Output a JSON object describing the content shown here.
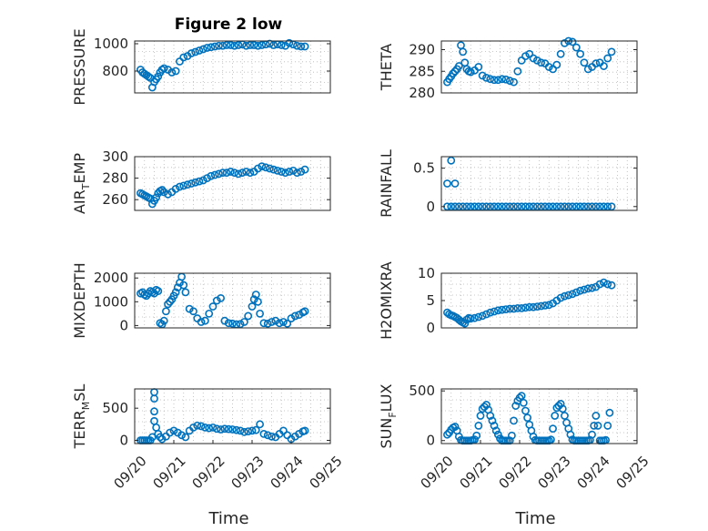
{
  "figure": {
    "title": "Figure 2 low",
    "marker_color": "#0072BD"
  },
  "chart_data": [
    {
      "type": "scatter",
      "panel": "PRESSURE",
      "ylabel": "PRESSURE",
      "ylim": [
        640,
        1020
      ],
      "yticks": [
        800,
        1000
      ],
      "yticklabels": [
        "800",
        "1000"
      ],
      "xlim": [
        0,
        5
      ],
      "xticks": [],
      "xlabel": "",
      "grid": true,
      "x": [
        0.15,
        0.2,
        0.25,
        0.3,
        0.35,
        0.4,
        0.45,
        0.5,
        0.55,
        0.6,
        0.65,
        0.7,
        0.75,
        0.85,
        0.95,
        1.05,
        1.15,
        1.25,
        1.35,
        1.45,
        1.55,
        1.65,
        1.75,
        1.85,
        1.95,
        2.05,
        2.15,
        2.25,
        2.35,
        2.45,
        2.55,
        2.65,
        2.75,
        2.85,
        2.95,
        3.05,
        3.15,
        3.25,
        3.35,
        3.45,
        3.55,
        3.65,
        3.75,
        3.85,
        3.95,
        4.05,
        4.15,
        4.25,
        4.35
      ],
      "y": [
        810,
        790,
        780,
        770,
        760,
        750,
        680,
        720,
        740,
        760,
        790,
        810,
        820,
        810,
        790,
        800,
        870,
        900,
        910,
        930,
        940,
        950,
        960,
        970,
        975,
        980,
        985,
        985,
        990,
        990,
        985,
        990,
        995,
        985,
        990,
        990,
        985,
        990,
        995,
        1000,
        990,
        995,
        990,
        985,
        1005,
        995,
        985,
        980,
        980
      ]
    },
    {
      "type": "scatter",
      "panel": "THETA",
      "ylabel": "THETA",
      "ylim": [
        280,
        292
      ],
      "yticks": [
        280,
        285,
        290
      ],
      "yticklabels": [
        "280",
        "285",
        "290"
      ],
      "xlim": [
        0,
        5
      ],
      "xticks": [],
      "xlabel": "",
      "grid": true,
      "x": [
        0.15,
        0.2,
        0.25,
        0.3,
        0.35,
        0.4,
        0.45,
        0.5,
        0.55,
        0.6,
        0.65,
        0.7,
        0.75,
        0.85,
        0.95,
        1.05,
        1.15,
        1.25,
        1.35,
        1.45,
        1.55,
        1.65,
        1.75,
        1.85,
        1.95,
        2.05,
        2.15,
        2.25,
        2.35,
        2.45,
        2.55,
        2.65,
        2.75,
        2.85,
        2.95,
        3.05,
        3.15,
        3.25,
        3.35,
        3.45,
        3.55,
        3.65,
        3.75,
        3.85,
        3.95,
        4.05,
        4.15,
        4.25,
        4.35
      ],
      "y": [
        282.5,
        283.2,
        283.8,
        284.5,
        285,
        285.5,
        286.2,
        291,
        289.5,
        287,
        285.5,
        285,
        284.8,
        285.2,
        286,
        284,
        283.5,
        283.2,
        283,
        283,
        283.2,
        283.1,
        282.8,
        282.5,
        285,
        287.5,
        288.5,
        289,
        288,
        287.5,
        287,
        286.8,
        286,
        285.5,
        286.5,
        289,
        291.5,
        292,
        291.8,
        290.5,
        289,
        287,
        285.5,
        286,
        286.8,
        287,
        286.2,
        288,
        289.5
      ]
    },
    {
      "type": "scatter",
      "panel": "AIR_TEMP",
      "ylabel": "AIR_TEMP",
      "ylim": [
        250,
        300
      ],
      "yticks": [
        260,
        280,
        300
      ],
      "yticklabels": [
        "260",
        "280",
        "300"
      ],
      "xlim": [
        0,
        5
      ],
      "xticks": [],
      "xlabel": "",
      "grid": true,
      "x": [
        0.15,
        0.2,
        0.25,
        0.3,
        0.35,
        0.4,
        0.45,
        0.5,
        0.55,
        0.6,
        0.65,
        0.7,
        0.75,
        0.85,
        0.95,
        1.05,
        1.15,
        1.25,
        1.35,
        1.45,
        1.55,
        1.65,
        1.75,
        1.85,
        1.95,
        2.05,
        2.15,
        2.25,
        2.35,
        2.45,
        2.55,
        2.65,
        2.75,
        2.85,
        2.95,
        3.05,
        3.15,
        3.25,
        3.35,
        3.45,
        3.55,
        3.65,
        3.75,
        3.85,
        3.95,
        4.05,
        4.15,
        4.25,
        4.35
      ],
      "y": [
        266,
        265,
        264,
        263,
        262,
        261,
        256,
        259,
        262,
        266,
        268,
        269,
        267,
        265,
        267,
        270,
        272,
        273,
        274,
        275,
        276,
        277,
        278,
        280,
        282,
        283,
        284,
        285,
        285,
        286,
        285,
        284,
        285,
        286,
        285,
        286,
        289,
        291,
        290,
        289,
        288,
        287,
        286,
        285,
        286,
        287,
        285,
        286,
        288
      ]
    },
    {
      "type": "scatter",
      "panel": "RAINFALL",
      "ylabel": "RAINFALL",
      "ylim": [
        -0.05,
        0.65
      ],
      "yticks": [
        0,
        0.5
      ],
      "yticklabels": [
        "0",
        "0.5"
      ],
      "xlim": [
        0,
        5
      ],
      "xticks": [],
      "xlabel": "",
      "grid": true,
      "x": [
        0.15,
        0.25,
        0.35,
        0.45,
        0.55,
        0.65,
        0.75,
        0.85,
        0.95,
        1.05,
        1.15,
        1.25,
        1.35,
        1.45,
        1.55,
        1.65,
        1.75,
        1.85,
        1.95,
        2.05,
        2.15,
        2.25,
        2.35,
        2.45,
        2.55,
        2.65,
        2.75,
        2.85,
        2.95,
        3.05,
        3.15,
        3.25,
        3.35,
        3.45,
        3.55,
        3.65,
        3.75,
        3.85,
        3.95,
        4.05,
        4.15,
        4.25,
        4.35,
        0.15,
        0.25,
        0.35
      ],
      "y": [
        0,
        0,
        0,
        0,
        0,
        0,
        0,
        0,
        0,
        0,
        0,
        0,
        0,
        0,
        0,
        0,
        0,
        0,
        0,
        0,
        0,
        0,
        0,
        0,
        0,
        0,
        0,
        0,
        0,
        0,
        0,
        0,
        0,
        0,
        0,
        0,
        0,
        0,
        0,
        0,
        0,
        0,
        0,
        0.3,
        0.6,
        0.3
      ]
    },
    {
      "type": "scatter",
      "panel": "MIXDEPTH",
      "ylabel": "MIXDEPTH",
      "ylim": [
        -100,
        2200
      ],
      "yticks": [
        0,
        1000,
        2000
      ],
      "yticklabels": [
        "0",
        "1000",
        "2000"
      ],
      "xlim": [
        0,
        5
      ],
      "xticks": [],
      "xlabel": "",
      "grid": true,
      "x": [
        0.15,
        0.2,
        0.25,
        0.3,
        0.35,
        0.4,
        0.45,
        0.5,
        0.55,
        0.6,
        0.65,
        0.7,
        0.75,
        0.8,
        0.85,
        0.9,
        0.95,
        1.0,
        1.05,
        1.1,
        1.15,
        1.2,
        1.25,
        1.3,
        1.4,
        1.5,
        1.6,
        1.7,
        1.8,
        1.9,
        2.0,
        2.1,
        2.2,
        2.3,
        2.4,
        2.5,
        2.6,
        2.7,
        2.8,
        2.9,
        3.0,
        3.05,
        3.1,
        3.15,
        3.2,
        3.3,
        3.4,
        3.5,
        3.6,
        3.7,
        3.8,
        3.9,
        4.0,
        4.1,
        4.2,
        4.3,
        4.35
      ],
      "y": [
        1350,
        1400,
        1300,
        1250,
        1350,
        1450,
        1400,
        1350,
        1500,
        1450,
        100,
        50,
        200,
        600,
        900,
        1000,
        1100,
        1250,
        1400,
        1600,
        1800,
        2050,
        1700,
        1400,
        700,
        600,
        300,
        150,
        200,
        500,
        800,
        1050,
        1150,
        200,
        100,
        80,
        50,
        60,
        150,
        400,
        800,
        1100,
        1300,
        1000,
        500,
        100,
        80,
        150,
        200,
        100,
        150,
        80,
        300,
        400,
        450,
        550,
        600
      ]
    },
    {
      "type": "scatter",
      "panel": "H2OMIXRA",
      "ylabel": "H2OMIXRA",
      "ylim": [
        0,
        10
      ],
      "yticks": [
        0,
        5,
        10
      ],
      "yticklabels": [
        "0",
        "5",
        "10"
      ],
      "xlim": [
        0,
        5
      ],
      "xticks": [],
      "xlabel": "",
      "grid": true,
      "x": [
        0.15,
        0.2,
        0.25,
        0.3,
        0.35,
        0.4,
        0.45,
        0.5,
        0.55,
        0.6,
        0.65,
        0.7,
        0.75,
        0.85,
        0.95,
        1.05,
        1.15,
        1.25,
        1.35,
        1.45,
        1.55,
        1.65,
        1.75,
        1.85,
        1.95,
        2.05,
        2.15,
        2.25,
        2.35,
        2.45,
        2.55,
        2.65,
        2.75,
        2.85,
        2.95,
        3.05,
        3.15,
        3.25,
        3.35,
        3.45,
        3.55,
        3.65,
        3.75,
        3.85,
        3.95,
        4.05,
        4.15,
        4.25,
        4.35
      ],
      "y": [
        2.8,
        2.5,
        2.3,
        2.2,
        2.0,
        1.8,
        1.5,
        1.2,
        1.0,
        0.8,
        1.5,
        1.8,
        1.7,
        1.8,
        2.0,
        2.2,
        2.5,
        2.8,
        3.0,
        3.2,
        3.3,
        3.4,
        3.5,
        3.5,
        3.6,
        3.6,
        3.7,
        3.8,
        3.8,
        3.9,
        4.0,
        4.1,
        4.2,
        4.5,
        5.0,
        5.5,
        5.8,
        6.0,
        6.2,
        6.5,
        6.8,
        7.0,
        7.2,
        7.3,
        7.5,
        8.0,
        8.3,
        8.0,
        7.8
      ]
    },
    {
      "type": "scatter",
      "panel": "TERR_MSL",
      "ylabel": "TERR_MSL",
      "ylim": [
        -50,
        800
      ],
      "yticks": [
        0,
        500
      ],
      "yticklabels": [
        "0",
        "500"
      ],
      "xlim": [
        0,
        5
      ],
      "xticks": [
        0,
        1,
        2,
        3,
        4,
        5
      ],
      "xticklabels": [
        "09/20",
        "09/21",
        "09/22",
        "09/23",
        "09/24",
        "09/25"
      ],
      "xlabel": "Time",
      "grid": true,
      "x": [
        0.15,
        0.2,
        0.25,
        0.3,
        0.35,
        0.4,
        0.45,
        0.5,
        0.5,
        0.5,
        0.5,
        0.55,
        0.6,
        0.65,
        0.7,
        0.8,
        0.9,
        1.0,
        1.1,
        1.2,
        1.3,
        1.4,
        1.5,
        1.6,
        1.7,
        1.8,
        1.9,
        2.0,
        2.1,
        2.2,
        2.3,
        2.4,
        2.5,
        2.6,
        2.7,
        2.8,
        2.9,
        3.0,
        3.1,
        3.2,
        3.3,
        3.4,
        3.5,
        3.6,
        3.7,
        3.8,
        3.9,
        4.0,
        4.1,
        4.2,
        4.3,
        4.35
      ],
      "y": [
        0,
        0,
        0,
        0,
        0,
        0,
        50,
        750,
        650,
        450,
        300,
        200,
        100,
        50,
        20,
        60,
        120,
        150,
        120,
        80,
        50,
        150,
        200,
        230,
        220,
        200,
        190,
        200,
        180,
        170,
        180,
        175,
        170,
        160,
        150,
        130,
        140,
        150,
        160,
        250,
        100,
        80,
        60,
        50,
        100,
        150,
        80,
        20,
        60,
        100,
        140,
        150
      ]
    },
    {
      "type": "scatter",
      "panel": "SUN_FLUX",
      "ylabel": "SUN_FLUX",
      "ylim": [
        -30,
        520
      ],
      "yticks": [
        0,
        500
      ],
      "yticklabels": [
        "0",
        "500"
      ],
      "xlim": [
        0,
        5
      ],
      "xticks": [
        0,
        1,
        2,
        3,
        4,
        5
      ],
      "xticklabels": [
        "09/20",
        "09/21",
        "09/22",
        "09/23",
        "09/24",
        "09/25"
      ],
      "xlabel": "Time",
      "grid": true,
      "x": [
        0.15,
        0.2,
        0.25,
        0.3,
        0.35,
        0.4,
        0.45,
        0.5,
        0.55,
        0.6,
        0.65,
        0.7,
        0.75,
        0.8,
        0.85,
        0.9,
        0.95,
        1.0,
        1.05,
        1.1,
        1.15,
        1.2,
        1.25,
        1.3,
        1.35,
        1.4,
        1.45,
        1.5,
        1.55,
        1.6,
        1.65,
        1.7,
        1.75,
        1.8,
        1.85,
        1.9,
        1.95,
        2.0,
        2.05,
        2.1,
        2.15,
        2.2,
        2.25,
        2.3,
        2.35,
        2.4,
        2.45,
        2.5,
        2.55,
        2.6,
        2.65,
        2.7,
        2.75,
        2.8,
        2.85,
        2.9,
        2.95,
        3.0,
        3.05,
        3.1,
        3.15,
        3.2,
        3.25,
        3.3,
        3.35,
        3.4,
        3.45,
        3.5,
        3.55,
        3.6,
        3.65,
        3.7,
        3.75,
        3.8,
        3.85,
        3.9,
        3.95,
        4.0,
        4.05,
        4.1,
        4.15,
        4.2,
        4.25,
        4.3
      ],
      "y": [
        60,
        80,
        110,
        130,
        140,
        100,
        40,
        5,
        0,
        0,
        0,
        0,
        0,
        5,
        10,
        50,
        150,
        250,
        320,
        340,
        360,
        310,
        250,
        200,
        150,
        100,
        60,
        20,
        0,
        0,
        0,
        0,
        0,
        50,
        200,
        350,
        400,
        430,
        450,
        380,
        300,
        230,
        160,
        100,
        40,
        5,
        0,
        0,
        0,
        0,
        0,
        0,
        0,
        10,
        120,
        250,
        330,
        350,
        370,
        320,
        250,
        180,
        120,
        60,
        10,
        0,
        0,
        0,
        0,
        0,
        0,
        0,
        0,
        5,
        60,
        150,
        250,
        150,
        0,
        0,
        0,
        5,
        150,
        280
      ]
    }
  ]
}
